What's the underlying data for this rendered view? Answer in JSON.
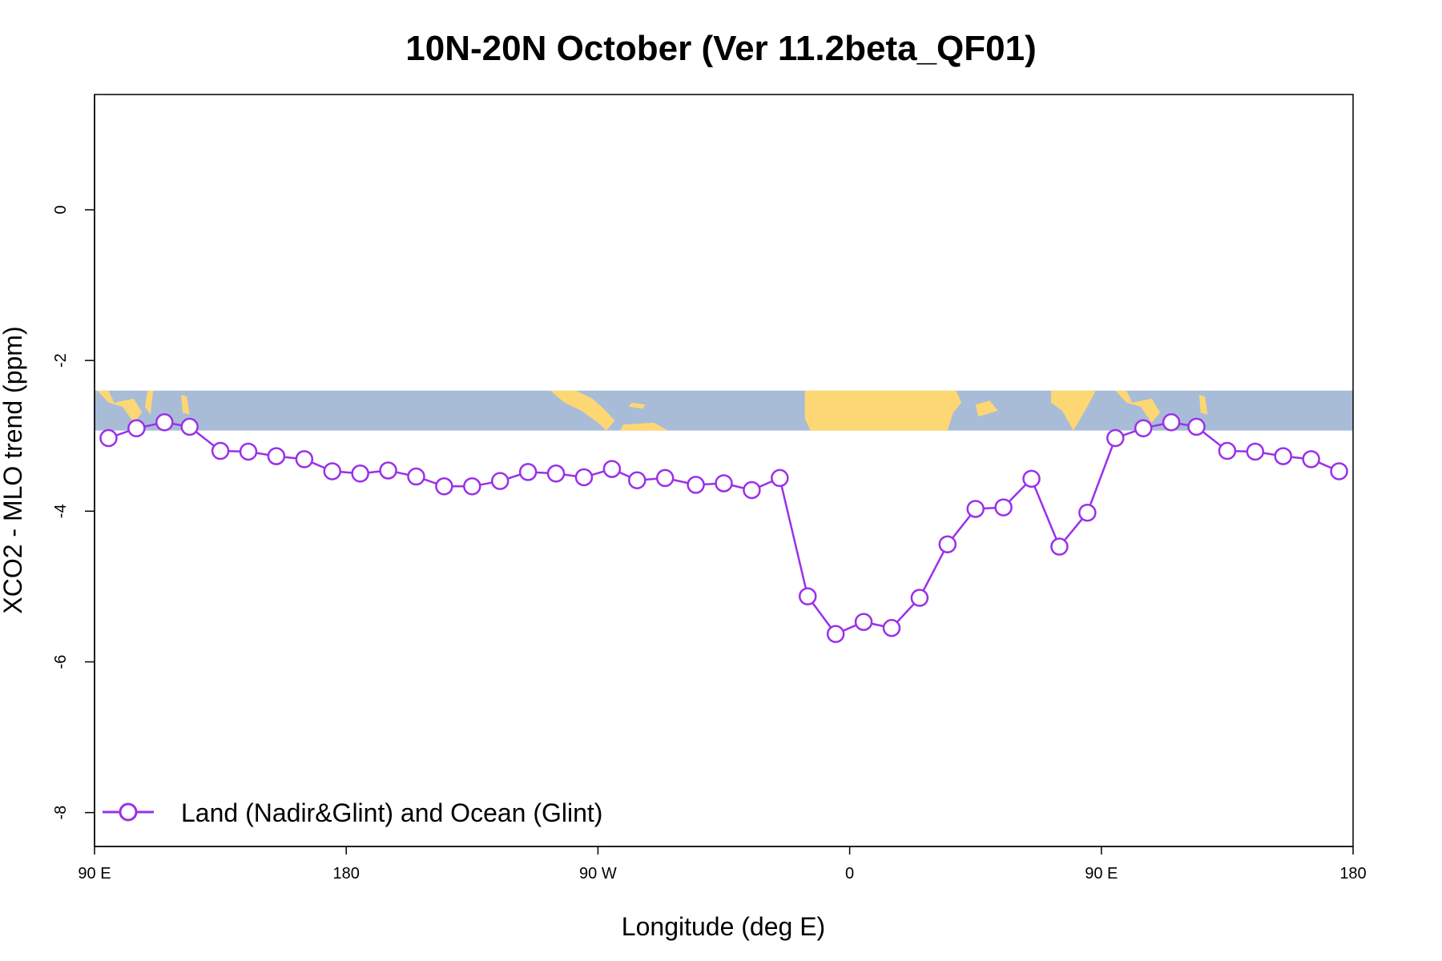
{
  "chart_data": {
    "type": "line",
    "title": "10N-20N October (Ver 11.2beta_QF01)",
    "xlabel": "Longitude (deg E)",
    "ylabel": "XCO2 - MLO trend (ppm)",
    "x_ticks": [
      {
        "value": 90,
        "label": "90 E"
      },
      {
        "value": 180,
        "label": "180"
      },
      {
        "value": 270,
        "label": "90 W"
      },
      {
        "value": 360,
        "label": "0"
      },
      {
        "value": 450,
        "label": "90 E"
      },
      {
        "value": 540,
        "label": "180"
      }
    ],
    "y_ticks": [
      {
        "value": 0,
        "label": "0"
      },
      {
        "value": -2,
        "label": "-2"
      },
      {
        "value": -4,
        "label": "-4"
      },
      {
        "value": -6,
        "label": "-6"
      },
      {
        "value": -8,
        "label": "-8"
      }
    ],
    "xlim": [
      90,
      540
    ],
    "ylim": [
      -8.45,
      1.53
    ],
    "grid": false,
    "legend": {
      "position": "bottom-left",
      "entries": [
        "Land (Nadir&Glint) and Ocean (Glint)"
      ]
    },
    "map_strip": {
      "description": "land/ocean map strip for latitude band",
      "y_range": [
        -2.93,
        -2.4
      ],
      "ocean_color": "#a8bcd8",
      "land_color": "#fdd774"
    },
    "series": [
      {
        "name": "Land (Nadir&Glint) and Ocean (Glint)",
        "color": "#9b30e8",
        "x": [
          95,
          105,
          115,
          124,
          135,
          145,
          155,
          165,
          175,
          185,
          195,
          205,
          215,
          225,
          235,
          245,
          255,
          265,
          275,
          284,
          294,
          305,
          315,
          325,
          335,
          345,
          355,
          365,
          375,
          385,
          395,
          405,
          415,
          425,
          435,
          445,
          455,
          465,
          475,
          484,
          495,
          505,
          515,
          525,
          535
        ],
        "y": [
          -3.03,
          -2.9,
          -2.82,
          -2.88,
          -3.2,
          -3.21,
          -3.27,
          -3.31,
          -3.47,
          -3.5,
          -3.46,
          -3.54,
          -3.67,
          -3.67,
          -3.6,
          -3.48,
          -3.5,
          -3.55,
          -3.44,
          -3.59,
          -3.56,
          -3.65,
          -3.63,
          -3.72,
          -3.56,
          -5.13,
          -5.63,
          -5.47,
          -5.55,
          -5.15,
          -4.44,
          -3.97,
          -3.95,
          -3.57,
          -4.47,
          -4.02,
          -3.03,
          -2.9,
          -2.82,
          -2.88,
          -3.2,
          -3.21,
          -3.27,
          -3.31,
          -3.47
        ]
      }
    ]
  }
}
